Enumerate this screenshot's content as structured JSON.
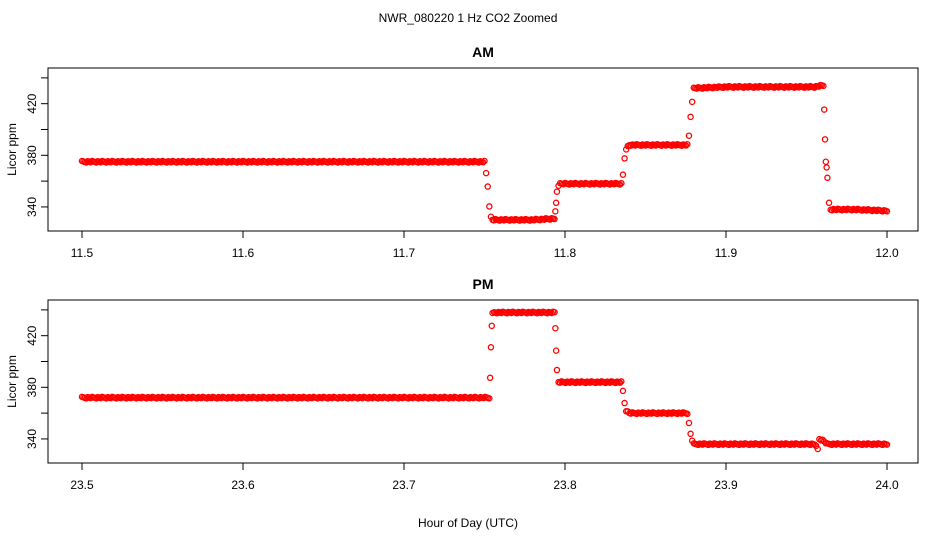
{
  "title": "NWR_080220  1 Hz CO2 Zoomed",
  "xlabel": "Hour of Day (UTC)",
  "colors": {
    "points": "#ff0000",
    "axes": "#000000",
    "background": "#ffffff"
  },
  "chart_data": [
    {
      "type": "scatter",
      "title": "AM",
      "ylabel": "Licor ppm",
      "xlim": [
        11.5,
        12.0
      ],
      "ylim": [
        326,
        443
      ],
      "xticks": [
        11.5,
        11.6,
        11.7,
        11.8,
        11.9,
        12.0
      ],
      "xtick_labels": [
        "11.5",
        "11.6",
        "11.7",
        "11.8",
        "11.9",
        "12.0"
      ],
      "yticks": [
        340,
        380,
        420
      ],
      "ytick_labels": [
        "340",
        "380",
        "420"
      ],
      "grid": false,
      "legend": "none",
      "series": [
        {
          "x": [
            11.5,
            11.55,
            11.6,
            11.65,
            11.7,
            11.75,
            11.751,
            11.752,
            11.753,
            11.754,
            11.755,
            11.78,
            11.7935,
            11.794,
            11.7945,
            11.795,
            11.796,
            11.797,
            11.8,
            11.82,
            11.835,
            11.836,
            11.837,
            11.838,
            11.839,
            11.84,
            11.86,
            11.876,
            11.877,
            11.878,
            11.879,
            11.88,
            11.9,
            11.93,
            11.955,
            11.9595,
            11.9605,
            11.961,
            11.9615,
            11.962,
            11.9625,
            11.963,
            11.964,
            11.965,
            11.98,
            12.0
          ],
          "y": [
            375,
            375,
            375,
            375,
            375,
            375,
            366,
            356,
            341,
            332,
            330,
            330,
            331,
            336,
            343,
            352,
            357,
            358,
            358,
            358,
            358,
            365,
            378,
            384,
            387,
            388,
            388,
            388,
            395,
            410,
            422,
            432,
            433,
            433,
            433,
            434,
            434,
            416,
            392,
            375,
            371,
            362,
            343,
            338,
            338,
            337
          ]
        }
      ]
    },
    {
      "type": "scatter",
      "title": "PM",
      "ylabel": "Licor ppm",
      "xlim": [
        23.5,
        24.0
      ],
      "ylim": [
        326,
        443
      ],
      "xticks": [
        23.5,
        23.6,
        23.7,
        23.8,
        23.9,
        24.0
      ],
      "xtick_labels": [
        "23.5",
        "23.6",
        "23.7",
        "23.8",
        "23.9",
        "24.0"
      ],
      "yticks": [
        340,
        380,
        420
      ],
      "ytick_labels": [
        "340",
        "380",
        "420"
      ],
      "grid": false,
      "legend": "none",
      "series": [
        {
          "x": [
            23.5,
            23.55,
            23.6,
            23.65,
            23.7,
            23.753,
            23.7535,
            23.754,
            23.7545,
            23.755,
            23.756,
            23.78,
            23.7935,
            23.794,
            23.7945,
            23.795,
            23.796,
            23.82,
            23.835,
            23.836,
            23.837,
            23.838,
            23.84,
            23.86,
            23.876,
            23.877,
            23.878,
            23.879,
            23.88,
            23.9,
            23.93,
            23.955,
            23.957,
            23.958,
            23.96,
            23.963,
            23.98,
            24.0
          ],
          "y": [
            372,
            372,
            372,
            372,
            372,
            372,
            387,
            411,
            428,
            437,
            438,
            438,
            438,
            426,
            409,
            393,
            384,
            384,
            384,
            377,
            368,
            362,
            360,
            360,
            360,
            352,
            344,
            339,
            336,
            336,
            336,
            336,
            332,
            340,
            339,
            336,
            336,
            336
          ]
        }
      ]
    }
  ]
}
